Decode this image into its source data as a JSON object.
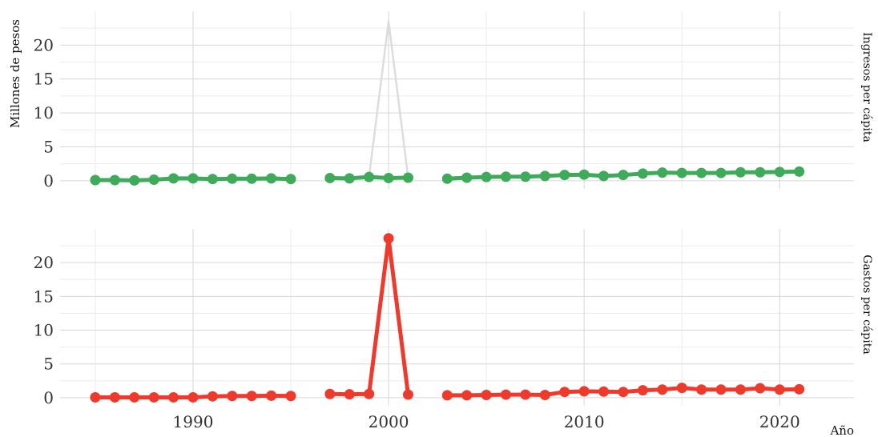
{
  "chart_data": {
    "type": "line",
    "xlabel": "Año",
    "ylabel": "Millones de pesos",
    "xlim": [
      1983.2,
      2023.8
    ],
    "x_ticks": [
      1990,
      2000,
      2010,
      2020
    ],
    "y_ticks": [
      0,
      5,
      10,
      15,
      20
    ],
    "ylim": [
      -1.2,
      25
    ],
    "grid": true,
    "legend": "none",
    "facets": [
      {
        "strip_label": "Ingresos per cápita",
        "color": "#3eaa5a",
        "ghost_color": "#dddddd",
        "series": [
          {
            "segments": [
              {
                "x": [
                  1985,
                  1986,
                  1987,
                  1988,
                  1989,
                  1990,
                  1991,
                  1992,
                  1993,
                  1994,
                  1995
                ],
                "y": [
                  0.1,
                  0.1,
                  0.05,
                  0.15,
                  0.35,
                  0.35,
                  0.25,
                  0.3,
                  0.3,
                  0.35,
                  0.25
                ]
              },
              {
                "x": [
                  1997,
                  1998,
                  1999,
                  2000,
                  2001
                ],
                "y": [
                  0.4,
                  0.35,
                  0.55,
                  0.4,
                  0.45
                ]
              },
              {
                "x": [
                  2003,
                  2004,
                  2005,
                  2006,
                  2007,
                  2008,
                  2009,
                  2010,
                  2011,
                  2012,
                  2013,
                  2014,
                  2015,
                  2016,
                  2017,
                  2018,
                  2019,
                  2020,
                  2021
                ],
                "y": [
                  0.3,
                  0.45,
                  0.55,
                  0.6,
                  0.6,
                  0.7,
                  0.85,
                  0.9,
                  0.7,
                  0.85,
                  1.05,
                  1.2,
                  1.15,
                  1.15,
                  1.15,
                  1.25,
                  1.25,
                  1.3,
                  1.35
                ]
              }
            ]
          }
        ],
        "ghost_series": [
          {
            "x": [
              1999,
              2000,
              2001
            ],
            "y": [
              0.55,
              23.5,
              0.45
            ]
          }
        ]
      },
      {
        "strip_label": "Gastos per cápita",
        "color": "#ee3a2c",
        "series": [
          {
            "segments": [
              {
                "x": [
                  1985,
                  1986,
                  1987,
                  1988,
                  1989,
                  1990,
                  1991,
                  1992,
                  1993,
                  1994,
                  1995
                ],
                "y": [
                  0.05,
                  0.05,
                  0.05,
                  0.05,
                  0.05,
                  0.05,
                  0.2,
                  0.25,
                  0.25,
                  0.3,
                  0.25
                ]
              },
              {
                "x": [
                  1997,
                  1998,
                  1999,
                  2000,
                  2001
                ],
                "y": [
                  0.55,
                  0.5,
                  0.55,
                  23.6,
                  0.45
                ]
              },
              {
                "x": [
                  2003,
                  2004,
                  2005,
                  2006,
                  2007,
                  2008,
                  2009,
                  2010,
                  2011,
                  2012,
                  2013,
                  2014,
                  2015,
                  2016,
                  2017,
                  2018,
                  2019,
                  2020,
                  2021
                ],
                "y": [
                  0.35,
                  0.35,
                  0.4,
                  0.45,
                  0.45,
                  0.4,
                  0.85,
                  0.95,
                  0.9,
                  0.85,
                  1.1,
                  1.2,
                  1.45,
                  1.2,
                  1.2,
                  1.2,
                  1.4,
                  1.2,
                  1.25
                ]
              }
            ]
          }
        ]
      }
    ]
  }
}
